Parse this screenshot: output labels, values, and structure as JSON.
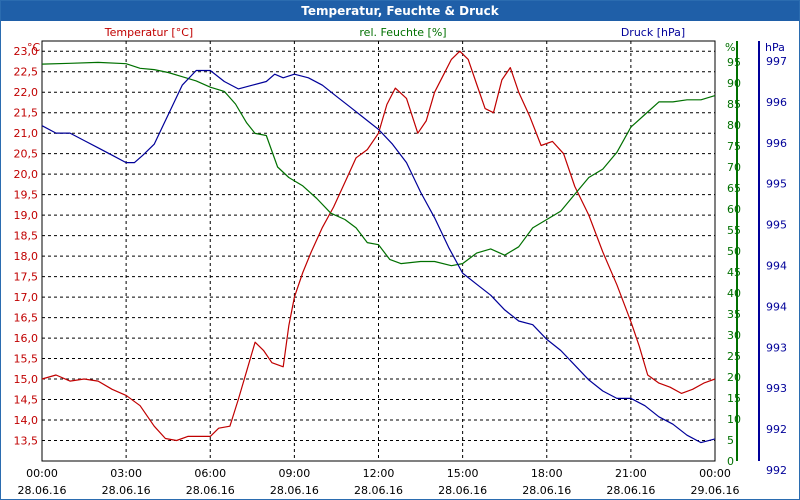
{
  "chart_data": {
    "type": "line",
    "title": "Temperatur, Feuchte & Druck",
    "x": {
      "range_hours": [
        0,
        24
      ],
      "ticks": [
        {
          "time": "00:00",
          "date": "28.06.16"
        },
        {
          "time": "03:00",
          "date": "28.06.16"
        },
        {
          "time": "06:00",
          "date": "28.06.16"
        },
        {
          "time": "09:00",
          "date": "28.06.16"
        },
        {
          "time": "12:00",
          "date": "28.06.16"
        },
        {
          "time": "15:00",
          "date": "28.06.16"
        },
        {
          "time": "18:00",
          "date": "28.06.16"
        },
        {
          "time": "21:00",
          "date": "28.06.16"
        },
        {
          "time": "00:00",
          "date": "29.06.16"
        }
      ]
    },
    "axes": {
      "temp": {
        "legend": "Temperatur [°C]",
        "unit": "°C",
        "color": "#c00000",
        "range": [
          13.0,
          23.25
        ],
        "ticks": [
          "23,0",
          "22,5",
          "22,0",
          "21,5",
          "21,0",
          "20,5",
          "20,0",
          "19,5",
          "19,0",
          "18,5",
          "18,0",
          "17,5",
          "17,0",
          "16,5",
          "16,0",
          "15,5",
          "15,0",
          "14,5",
          "14,0",
          "13,5"
        ]
      },
      "hum": {
        "legend": "rel. Feuchte [%]",
        "unit": "%",
        "color": "#007000",
        "range": [
          0,
          100
        ],
        "ticks": [
          "95",
          "90",
          "85",
          "80",
          "75",
          "70",
          "65",
          "60",
          "55",
          "50",
          "45",
          "40",
          "35",
          "30",
          "25",
          "20",
          "15",
          "10",
          "5",
          "0"
        ]
      },
      "press": {
        "legend": "Druck [hPa]",
        "unit": "hPa",
        "color": "#000099",
        "range": [
          991.7,
          997.4
        ],
        "ticks": [
          "997",
          "996",
          "996",
          "995",
          "995",
          "994",
          "994",
          "993",
          "993",
          "992",
          "992"
        ]
      }
    },
    "series": [
      {
        "name": "Temperatur",
        "axis": "temp",
        "color": "#c00000",
        "points": [
          [
            0,
            15.0
          ],
          [
            0.5,
            15.1
          ],
          [
            1,
            14.95
          ],
          [
            1.5,
            15.0
          ],
          [
            2,
            14.95
          ],
          [
            2.5,
            14.75
          ],
          [
            3,
            14.6
          ],
          [
            3.5,
            14.35
          ],
          [
            4,
            13.85
          ],
          [
            4.4,
            13.55
          ],
          [
            4.8,
            13.5
          ],
          [
            5.2,
            13.6
          ],
          [
            6,
            13.6
          ],
          [
            6.3,
            13.8
          ],
          [
            6.7,
            13.85
          ],
          [
            7.0,
            14.5
          ],
          [
            7.3,
            15.2
          ],
          [
            7.6,
            15.9
          ],
          [
            7.9,
            15.7
          ],
          [
            8.2,
            15.4
          ],
          [
            8.6,
            15.3
          ],
          [
            8.8,
            16.3
          ],
          [
            9.0,
            17.0
          ],
          [
            9.3,
            17.6
          ],
          [
            9.6,
            18.1
          ],
          [
            10.0,
            18.7
          ],
          [
            10.4,
            19.2
          ],
          [
            10.8,
            19.8
          ],
          [
            11.2,
            20.4
          ],
          [
            11.6,
            20.6
          ],
          [
            12.0,
            21.0
          ],
          [
            12.3,
            21.7
          ],
          [
            12.6,
            22.1
          ],
          [
            13.0,
            21.85
          ],
          [
            13.4,
            21.0
          ],
          [
            13.7,
            21.3
          ],
          [
            14.0,
            22.0
          ],
          [
            14.3,
            22.4
          ],
          [
            14.6,
            22.8
          ],
          [
            14.9,
            23.0
          ],
          [
            15.2,
            22.8
          ],
          [
            15.5,
            22.2
          ],
          [
            15.8,
            21.6
          ],
          [
            16.1,
            21.5
          ],
          [
            16.4,
            22.3
          ],
          [
            16.7,
            22.6
          ],
          [
            17.0,
            22.0
          ],
          [
            17.4,
            21.4
          ],
          [
            17.8,
            20.7
          ],
          [
            18.2,
            20.8
          ],
          [
            18.6,
            20.5
          ],
          [
            19.0,
            19.7
          ],
          [
            19.5,
            19.0
          ],
          [
            20.0,
            18.1
          ],
          [
            20.5,
            17.3
          ],
          [
            21.0,
            16.4
          ],
          [
            21.3,
            15.8
          ],
          [
            21.6,
            15.1
          ],
          [
            22.0,
            14.9
          ],
          [
            22.4,
            14.8
          ],
          [
            22.8,
            14.65
          ],
          [
            23.2,
            14.75
          ],
          [
            23.6,
            14.9
          ],
          [
            24.0,
            15.0
          ]
        ]
      },
      {
        "name": "rel. Feuchte",
        "axis": "hum",
        "color": "#007000",
        "points": [
          [
            0,
            94.5
          ],
          [
            1,
            94.7
          ],
          [
            2,
            94.9
          ],
          [
            3,
            94.6
          ],
          [
            3.5,
            93.5
          ],
          [
            4,
            93.2
          ],
          [
            4.5,
            92.5
          ],
          [
            5,
            91.5
          ],
          [
            5.5,
            90.5
          ],
          [
            6,
            89.0
          ],
          [
            6.5,
            88.0
          ],
          [
            6.9,
            85.0
          ],
          [
            7.3,
            80.5
          ],
          [
            7.6,
            78.0
          ],
          [
            8.0,
            77.5
          ],
          [
            8.4,
            70.0
          ],
          [
            8.8,
            67.5
          ],
          [
            9.3,
            65.5
          ],
          [
            9.8,
            62.5
          ],
          [
            10.3,
            59.0
          ],
          [
            10.8,
            57.5
          ],
          [
            11.2,
            55.5
          ],
          [
            11.6,
            52.0
          ],
          [
            12.0,
            51.5
          ],
          [
            12.4,
            48.0
          ],
          [
            12.8,
            47.0
          ],
          [
            13.5,
            47.5
          ],
          [
            14.0,
            47.5
          ],
          [
            14.6,
            46.5
          ],
          [
            15.0,
            47.0
          ],
          [
            15.5,
            49.5
          ],
          [
            16.0,
            50.5
          ],
          [
            16.5,
            49.0
          ],
          [
            17.0,
            51.0
          ],
          [
            17.5,
            55.5
          ],
          [
            18.0,
            57.5
          ],
          [
            18.5,
            59.5
          ],
          [
            19.0,
            63.5
          ],
          [
            19.5,
            67.5
          ],
          [
            20.0,
            69.5
          ],
          [
            20.5,
            73.5
          ],
          [
            21.0,
            79.5
          ],
          [
            21.5,
            82.5
          ],
          [
            22.0,
            85.5
          ],
          [
            22.5,
            85.5
          ],
          [
            23.0,
            86.0
          ],
          [
            23.5,
            86.0
          ],
          [
            24.0,
            87.0
          ]
        ]
      },
      {
        "name": "Druck",
        "axis": "press",
        "color": "#000099",
        "points": [
          [
            0,
            996.25
          ],
          [
            0.5,
            996.15
          ],
          [
            1,
            996.15
          ],
          [
            1.5,
            996.05
          ],
          [
            2,
            995.95
          ],
          [
            2.5,
            995.85
          ],
          [
            3,
            995.75
          ],
          [
            3.3,
            995.75
          ],
          [
            3.6,
            995.85
          ],
          [
            4,
            996.0
          ],
          [
            4.5,
            996.4
          ],
          [
            5,
            996.8
          ],
          [
            5.5,
            997.0
          ],
          [
            6,
            997.0
          ],
          [
            6.5,
            996.85
          ],
          [
            7,
            996.75
          ],
          [
            7.5,
            996.8
          ],
          [
            8,
            996.85
          ],
          [
            8.3,
            996.95
          ],
          [
            8.6,
            996.9
          ],
          [
            9,
            996.95
          ],
          [
            9.5,
            996.9
          ],
          [
            10,
            996.8
          ],
          [
            10.5,
            996.65
          ],
          [
            11,
            996.5
          ],
          [
            11.5,
            996.35
          ],
          [
            12,
            996.2
          ],
          [
            12.5,
            996.0
          ],
          [
            13,
            995.75
          ],
          [
            13.5,
            995.35
          ],
          [
            14,
            995.0
          ],
          [
            14.5,
            994.6
          ],
          [
            15,
            994.25
          ],
          [
            15.5,
            994.1
          ],
          [
            16,
            993.95
          ],
          [
            16.5,
            993.75
          ],
          [
            17,
            993.6
          ],
          [
            17.5,
            993.55
          ],
          [
            18,
            993.35
          ],
          [
            18.5,
            993.2
          ],
          [
            19,
            993.0
          ],
          [
            19.5,
            992.8
          ],
          [
            20,
            992.65
          ],
          [
            20.5,
            992.55
          ],
          [
            21,
            992.55
          ],
          [
            21.5,
            992.45
          ],
          [
            22,
            992.3
          ],
          [
            22.5,
            992.2
          ],
          [
            23,
            992.05
          ],
          [
            23.5,
            991.95
          ],
          [
            24,
            992.0
          ]
        ]
      }
    ]
  }
}
